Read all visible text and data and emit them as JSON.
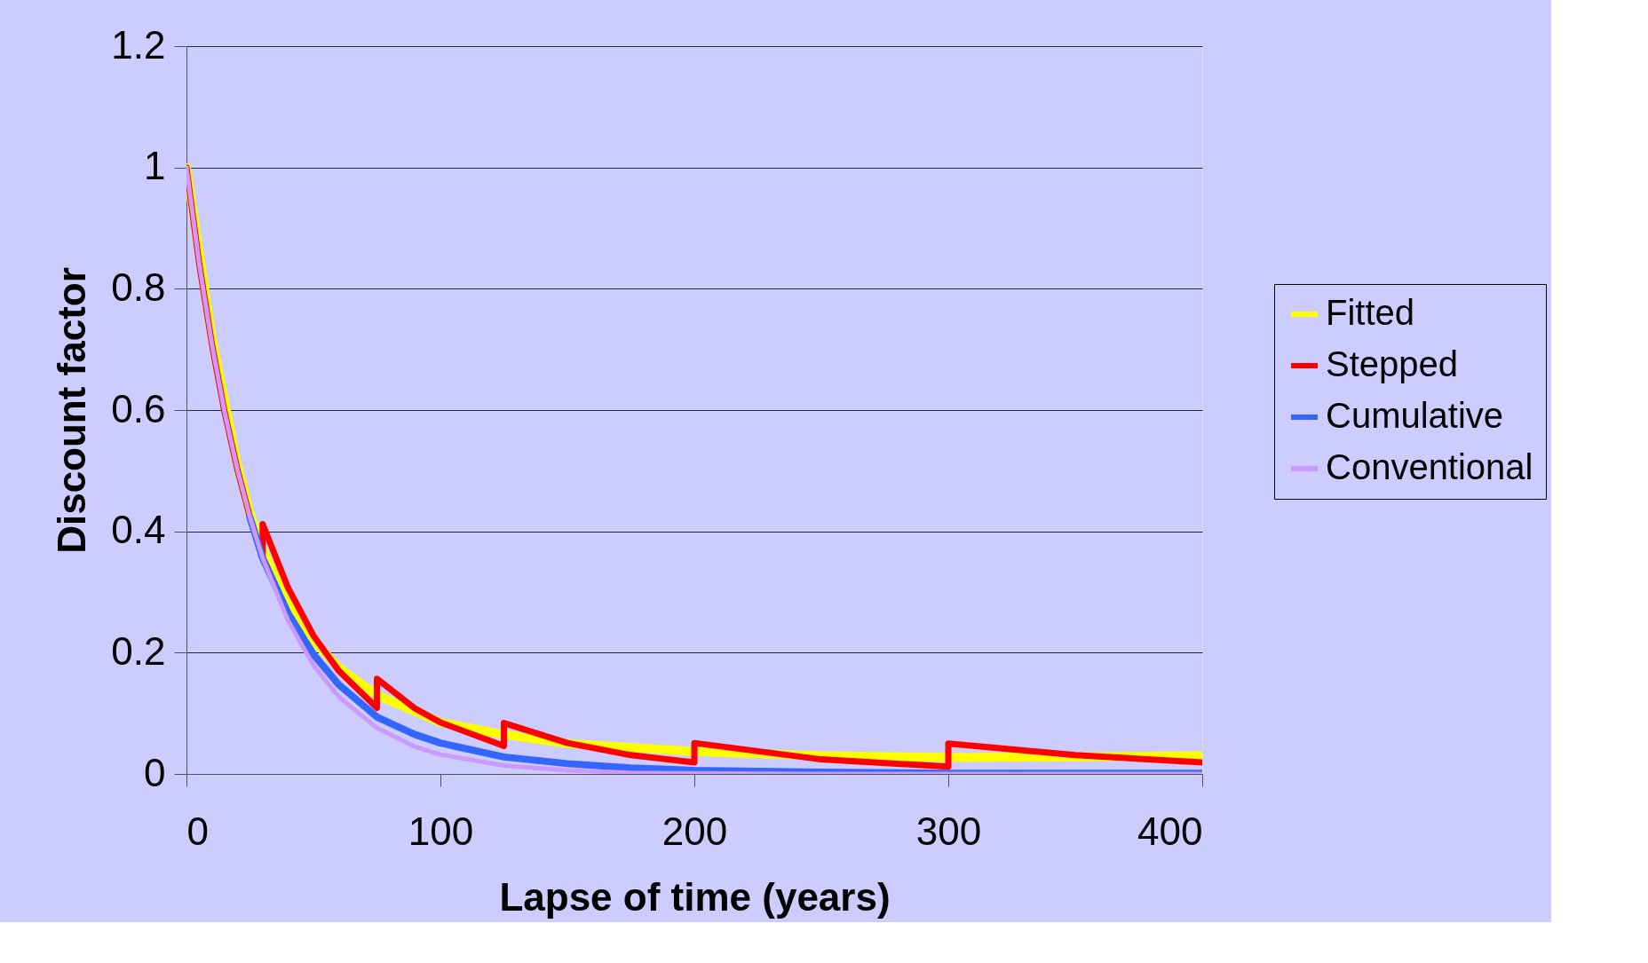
{
  "chart_data": {
    "type": "line",
    "xlabel": "Lapse of time (years)",
    "ylabel": "Discount factor",
    "xlim": [
      0,
      400
    ],
    "xticks": [
      0,
      100,
      200,
      300,
      400
    ],
    "ylim": [
      0,
      1.2
    ],
    "yticks": [
      0,
      0.2,
      0.4,
      0.6,
      0.8,
      1,
      1.2
    ],
    "grid": "y",
    "legend": "right",
    "line_style": "solid",
    "marker": "none",
    "series": [
      {
        "name": "Fitted",
        "color": "#ffff00",
        "x": [
          0,
          10,
          20,
          25,
          30,
          40,
          50,
          60,
          75,
          100,
          125,
          150,
          200,
          250,
          300,
          350,
          400
        ],
        "values": [
          1,
          0.72,
          0.51,
          0.43,
          0.37,
          0.28,
          0.22,
          0.175,
          0.13,
          0.085,
          0.065,
          0.05,
          0.037,
          0.03,
          0.027,
          0.028,
          0.03
        ]
      },
      {
        "name": "Stepped",
        "color": "#ff0000",
        "x": [
          0,
          5,
          10,
          15,
          20,
          25,
          30,
          30,
          40,
          50,
          60,
          75,
          75,
          90,
          100,
          125,
          125,
          150,
          175,
          200,
          200,
          250,
          300,
          300,
          350,
          400
        ],
        "values": [
          1,
          0.842,
          0.709,
          0.597,
          0.503,
          0.423,
          0.356,
          0.412,
          0.307,
          0.228,
          0.17,
          0.109,
          0.157,
          0.108,
          0.085,
          0.046,
          0.084,
          0.051,
          0.031,
          0.019,
          0.051,
          0.024,
          0.012,
          0.05,
          0.031,
          0.019
        ]
      },
      {
        "name": "Cumulative",
        "color": "#3366ff",
        "x": [
          25,
          30,
          40,
          50,
          60,
          75,
          90,
          100,
          125,
          150,
          175,
          200,
          250,
          300,
          350,
          400
        ],
        "values": [
          0.423,
          0.356,
          0.265,
          0.197,
          0.147,
          0.094,
          0.065,
          0.051,
          0.028,
          0.017,
          0.01,
          0.006,
          0.003,
          0.001,
          0.001,
          0.001
        ]
      },
      {
        "name": "Conventional",
        "color": "#cc99ff",
        "x": [
          0,
          5,
          10,
          15,
          20,
          25,
          30,
          40,
          50,
          60,
          75,
          90,
          100,
          125,
          150,
          175,
          200,
          250,
          300,
          350,
          400
        ],
        "values": [
          1,
          0.842,
          0.709,
          0.597,
          0.503,
          0.423,
          0.356,
          0.253,
          0.179,
          0.127,
          0.076,
          0.045,
          0.032,
          0.014,
          0.006,
          0.002,
          0.001,
          0,
          0,
          0,
          0
        ]
      }
    ]
  }
}
